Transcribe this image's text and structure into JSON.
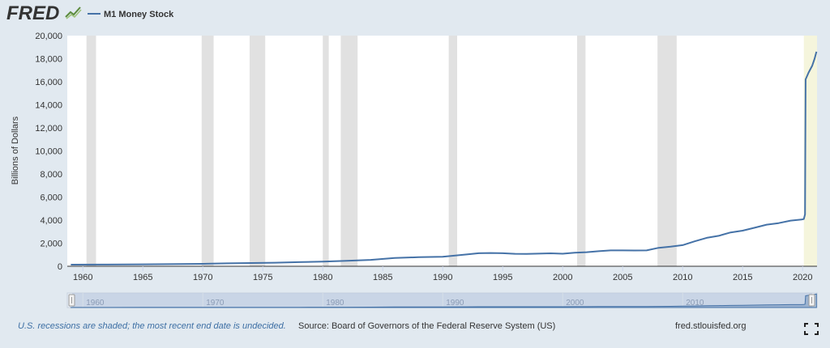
{
  "header": {
    "logo_text": "FRED",
    "logo_icon": "fred-chart-icon",
    "legend_label": "M1 Money Stock",
    "legend_color": "#4572a7"
  },
  "footer": {
    "recession_note": "U.S. recessions are shaded; the most recent end date is undecided.",
    "source": "Source: Board of Governors of the Federal Reserve System (US)",
    "site": "fred.stlouisfed.org",
    "fullscreen_icon": "fullscreen-icon"
  },
  "colors": {
    "background": "#e1e9f0",
    "plot_background": "#ffffff",
    "recession_shade": "#e1e1e1",
    "undecided_shade": "#f5f5dc",
    "series": "#4572a7",
    "navigator_fill": "#bccbe0"
  },
  "chart_data": {
    "type": "line",
    "title": "",
    "xlabel": "",
    "ylabel": "Billions of Dollars",
    "xlim": [
      1958.7,
      2021.2
    ],
    "ylim": [
      0,
      20000
    ],
    "grid": false,
    "legend_position": "top-left",
    "yticks": [
      0,
      2000,
      4000,
      6000,
      8000,
      10000,
      12000,
      14000,
      16000,
      18000,
      20000
    ],
    "ytick_labels": [
      "0",
      "2,000",
      "4,000",
      "6,000",
      "8,000",
      "10,000",
      "12,000",
      "14,000",
      "16,000",
      "18,000",
      "20,000"
    ],
    "xticks": [
      1960,
      1965,
      1970,
      1975,
      1980,
      1985,
      1990,
      1995,
      2000,
      2005,
      2010,
      2015,
      2020
    ],
    "xtick_labels": [
      "1960",
      "1965",
      "1970",
      "1975",
      "1980",
      "1985",
      "1990",
      "1995",
      "2000",
      "2005",
      "2010",
      "2015",
      "2020"
    ],
    "navigator_ticks": [
      1960,
      1970,
      1980,
      1990,
      2000,
      2010
    ],
    "navigator_tick_labels": [
      "1960",
      "1970",
      "1980",
      "1990",
      "2000",
      "2010"
    ],
    "recessions": [
      {
        "start": 1960.3,
        "end": 1961.1
      },
      {
        "start": 1969.9,
        "end": 1970.9
      },
      {
        "start": 1973.9,
        "end": 1975.2
      },
      {
        "start": 1980.0,
        "end": 1980.5
      },
      {
        "start": 1981.5,
        "end": 1982.9
      },
      {
        "start": 1990.5,
        "end": 1991.2
      },
      {
        "start": 2001.2,
        "end": 2001.9
      },
      {
        "start": 2007.9,
        "end": 2009.5
      }
    ],
    "undecided_recession": {
      "start": 2020.1,
      "end": 2021.2
    },
    "series": [
      {
        "name": "M1 Money Stock",
        "color": "#4572a7",
        "points": [
          [
            1959,
            140
          ],
          [
            1962,
            147
          ],
          [
            1965,
            167
          ],
          [
            1968,
            197
          ],
          [
            1970,
            214
          ],
          [
            1972,
            250
          ],
          [
            1974,
            279
          ],
          [
            1976,
            307
          ],
          [
            1978,
            360
          ],
          [
            1980,
            408
          ],
          [
            1982,
            475
          ],
          [
            1984,
            552
          ],
          [
            1986,
            724
          ],
          [
            1987,
            750
          ],
          [
            1988,
            787
          ],
          [
            1990,
            825
          ],
          [
            1992,
            1025
          ],
          [
            1993,
            1129
          ],
          [
            1994,
            1150
          ],
          [
            1995,
            1127
          ],
          [
            1996,
            1081
          ],
          [
            1997,
            1073
          ],
          [
            1998,
            1096
          ],
          [
            1999,
            1125
          ],
          [
            2000,
            1087
          ],
          [
            2001,
            1180
          ],
          [
            2002,
            1220
          ],
          [
            2003,
            1307
          ],
          [
            2004,
            1375
          ],
          [
            2005,
            1375
          ],
          [
            2006,
            1367
          ],
          [
            2007,
            1375
          ],
          [
            2008,
            1600
          ],
          [
            2009,
            1700
          ],
          [
            2010,
            1835
          ],
          [
            2011,
            2160
          ],
          [
            2012,
            2460
          ],
          [
            2013,
            2640
          ],
          [
            2014,
            2930
          ],
          [
            2015,
            3090
          ],
          [
            2016,
            3340
          ],
          [
            2017,
            3610
          ],
          [
            2018,
            3740
          ],
          [
            2019,
            3960
          ],
          [
            2019.9,
            4050
          ],
          [
            2020.1,
            4100
          ],
          [
            2020.2,
            4500
          ],
          [
            2020.25,
            16200
          ],
          [
            2020.5,
            16800
          ],
          [
            2020.8,
            17400
          ],
          [
            2021.0,
            18000
          ],
          [
            2021.15,
            18600
          ]
        ]
      }
    ]
  }
}
